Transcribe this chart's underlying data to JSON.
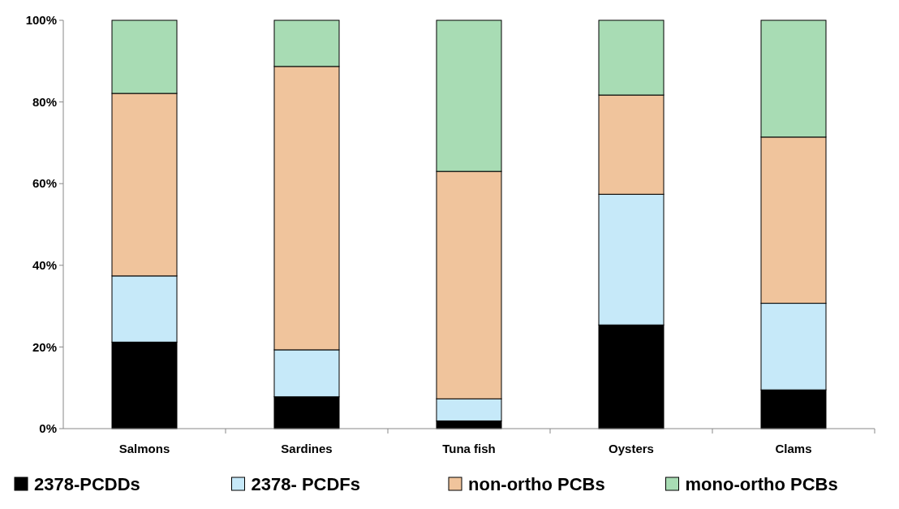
{
  "chart_data": {
    "type": "bar",
    "stacked": true,
    "categories": [
      "Salmons",
      "Sardines",
      "Tuna fish",
      "Oysters",
      "Clams"
    ],
    "series": [
      {
        "name": "2378-PCDDs",
        "color": "#000000",
        "values": [
          21.2,
          7.8,
          1.9,
          25.4,
          9.5
        ]
      },
      {
        "name": "2378- PCDFs",
        "color": "#c6e9f9",
        "values": [
          16.2,
          11.5,
          5.4,
          32.0,
          21.2
        ]
      },
      {
        "name": "non-ortho PCBs",
        "color": "#f0c49c",
        "values": [
          44.7,
          69.4,
          55.7,
          24.3,
          40.7
        ]
      },
      {
        "name": "mono-ortho PCBs",
        "color": "#a8dcb4",
        "values": [
          17.9,
          11.3,
          37.0,
          18.3,
          28.6
        ]
      }
    ],
    "ylim": [
      0,
      100
    ],
    "yticks": [
      {
        "value": 0,
        "label": "0%"
      },
      {
        "value": 20,
        "label": "20%"
      },
      {
        "value": 40,
        "label": "40%"
      },
      {
        "value": 60,
        "label": "60%"
      },
      {
        "value": 80,
        "label": "80%"
      },
      {
        "value": 100,
        "label": "100%"
      }
    ],
    "legend": "bottom"
  }
}
